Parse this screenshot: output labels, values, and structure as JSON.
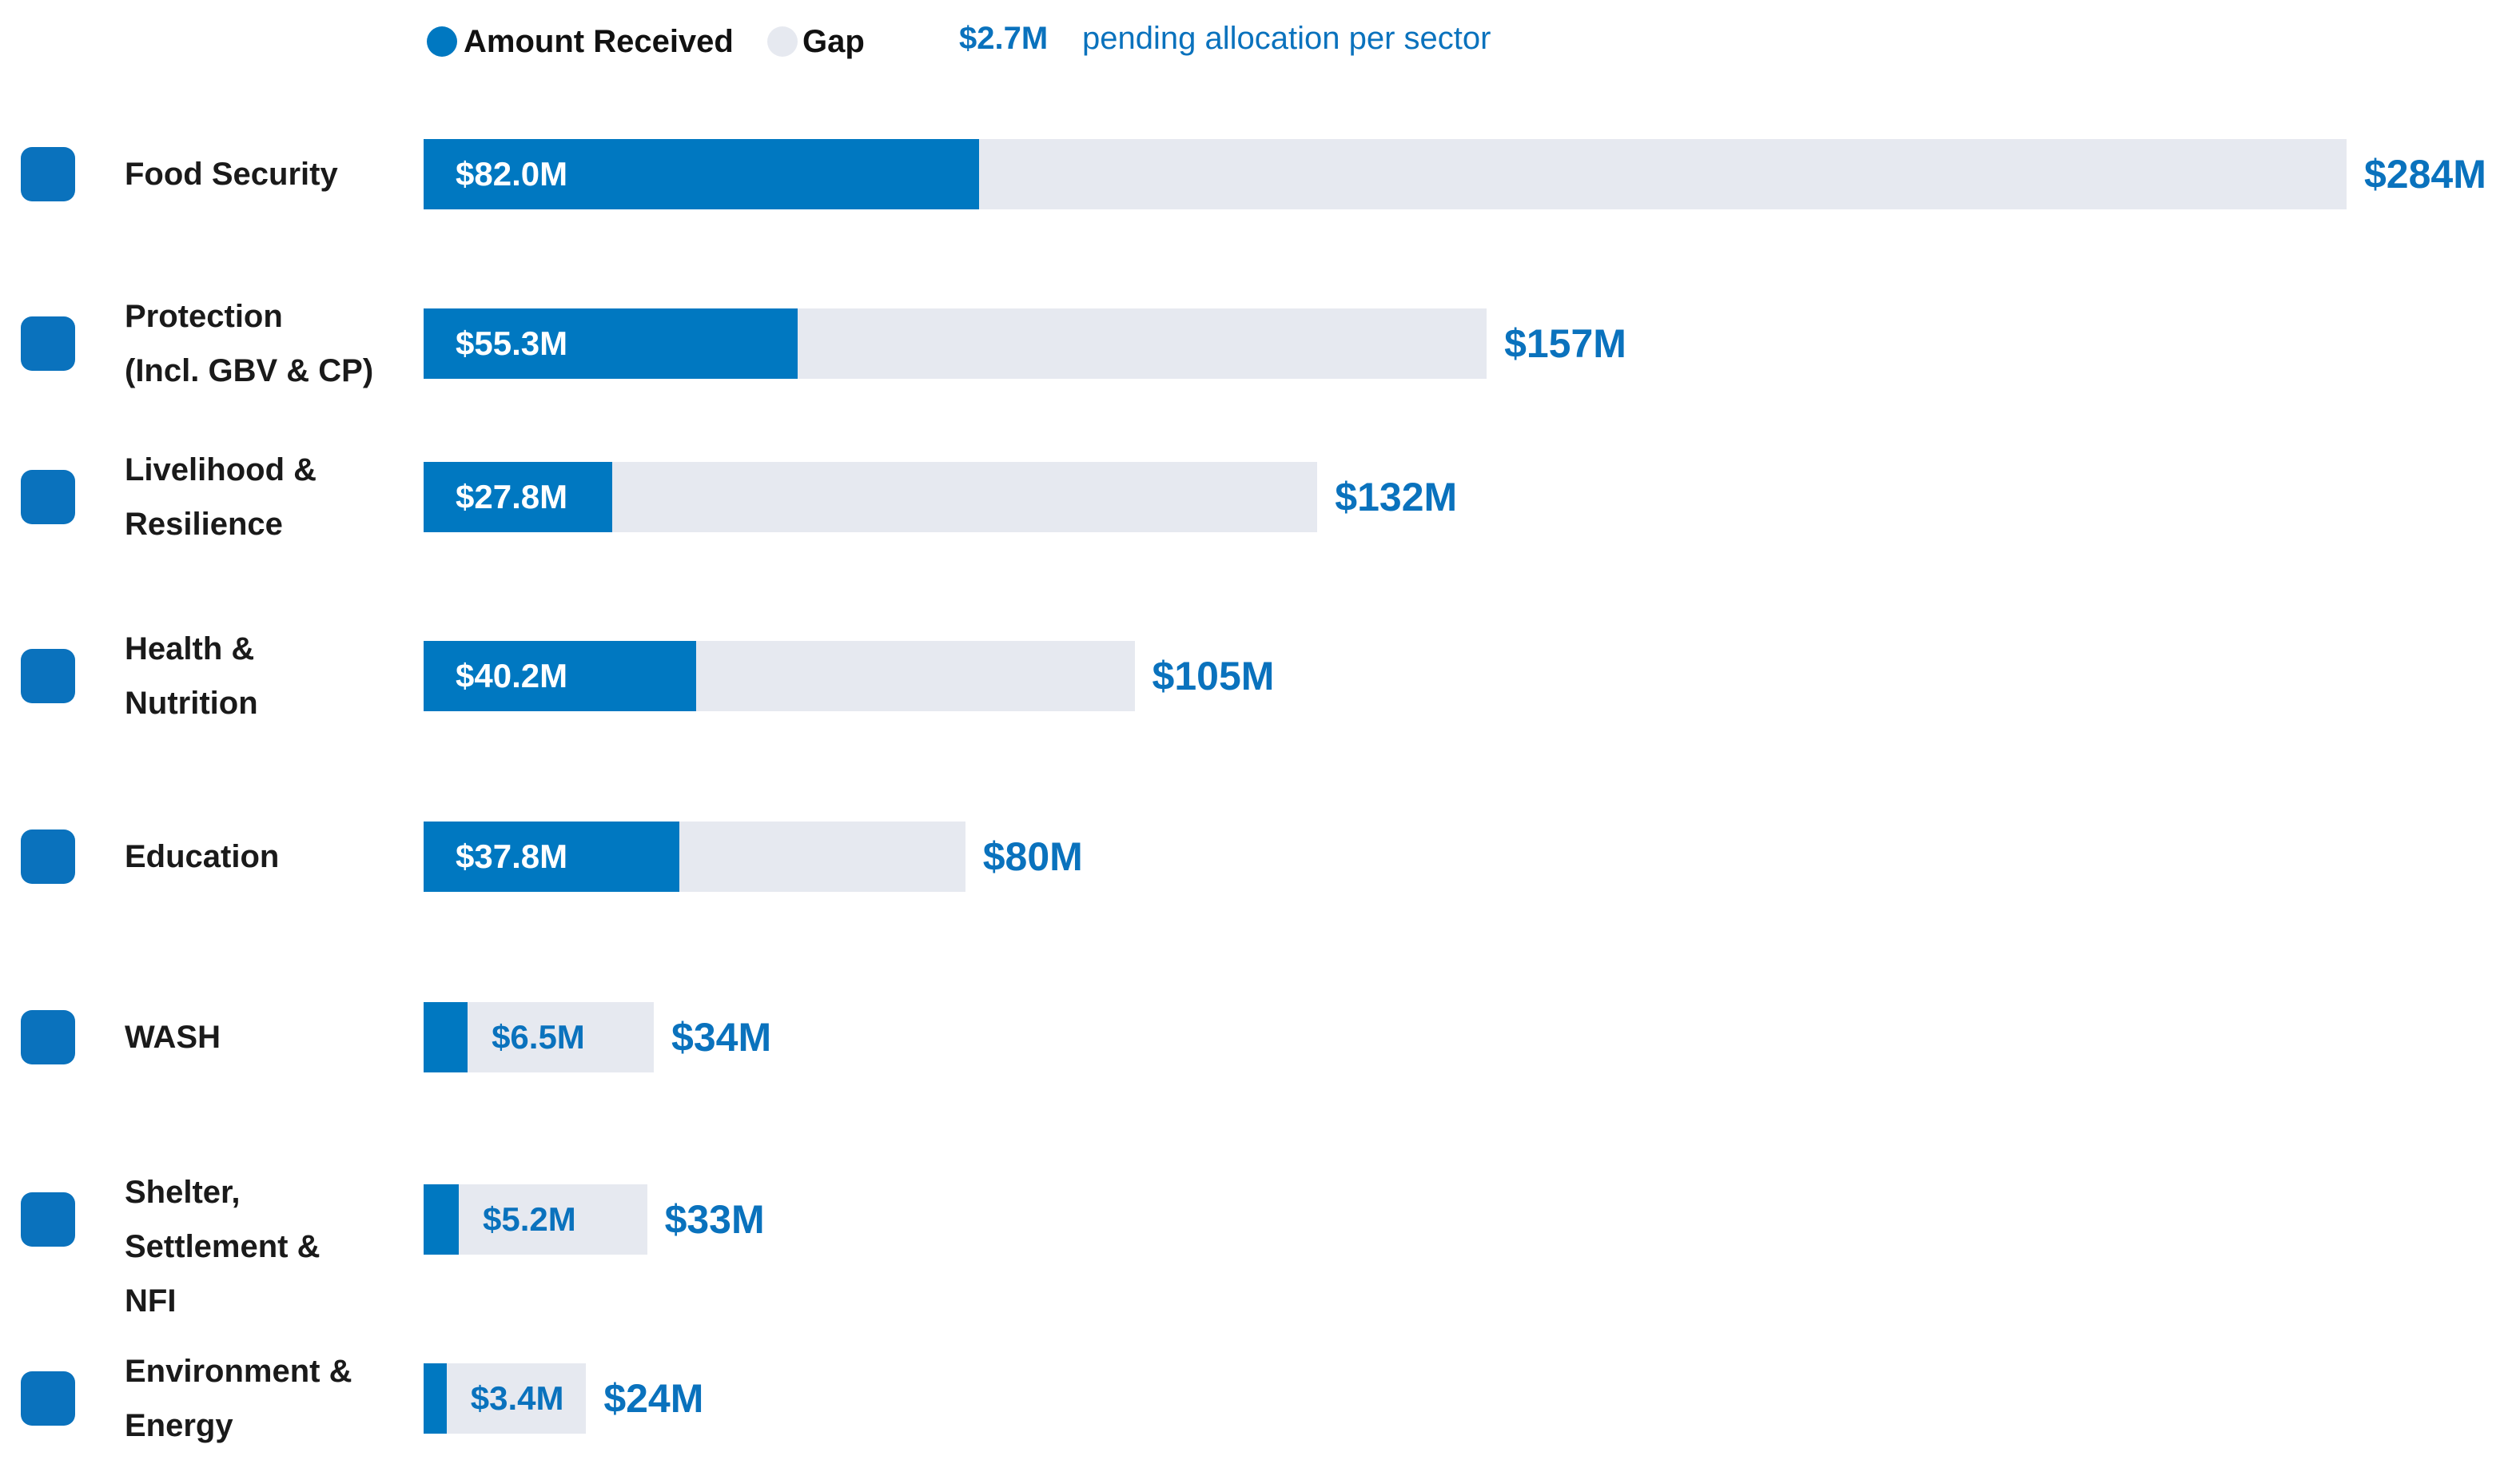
{
  "chart_data": {
    "type": "bar",
    "legend": {
      "position": "top"
    },
    "note": {
      "amount": "$2.7M",
      "text": "pending allocation per sector"
    },
    "categories": [
      "Food Security",
      "Protection\n(Incl. GBV & CP)",
      "Livelihood &\nResilience",
      "Health &\nNutrition",
      "Education",
      "WASH",
      "Shelter,\nSettlement &\nNFI",
      "Environment &\nEnergy"
    ],
    "series": [
      {
        "name": "Amount Received",
        "color": "#0078c1",
        "values": [
          82.0,
          55.3,
          27.8,
          40.2,
          37.8,
          6.5,
          5.2,
          3.4
        ],
        "value_labels": [
          "$82.0M",
          "$55.3M",
          "$27.8M",
          "$40.2M",
          "$37.8M",
          "$6.5M",
          "$5.2M",
          "$3.4M"
        ]
      },
      {
        "name": "Gap",
        "color": "#e6e9f0",
        "values": [
          202.0,
          101.7,
          104.2,
          64.8,
          42.2,
          27.5,
          27.8,
          20.6
        ]
      }
    ],
    "totals": {
      "values": [
        284,
        157,
        132,
        105,
        80,
        34,
        33,
        24
      ],
      "value_labels": [
        "$284M",
        "$157M",
        "$132M",
        "$105M",
        "$80M",
        "$34M",
        "$33M",
        "$24M"
      ]
    },
    "xlim": [
      0,
      284
    ]
  }
}
